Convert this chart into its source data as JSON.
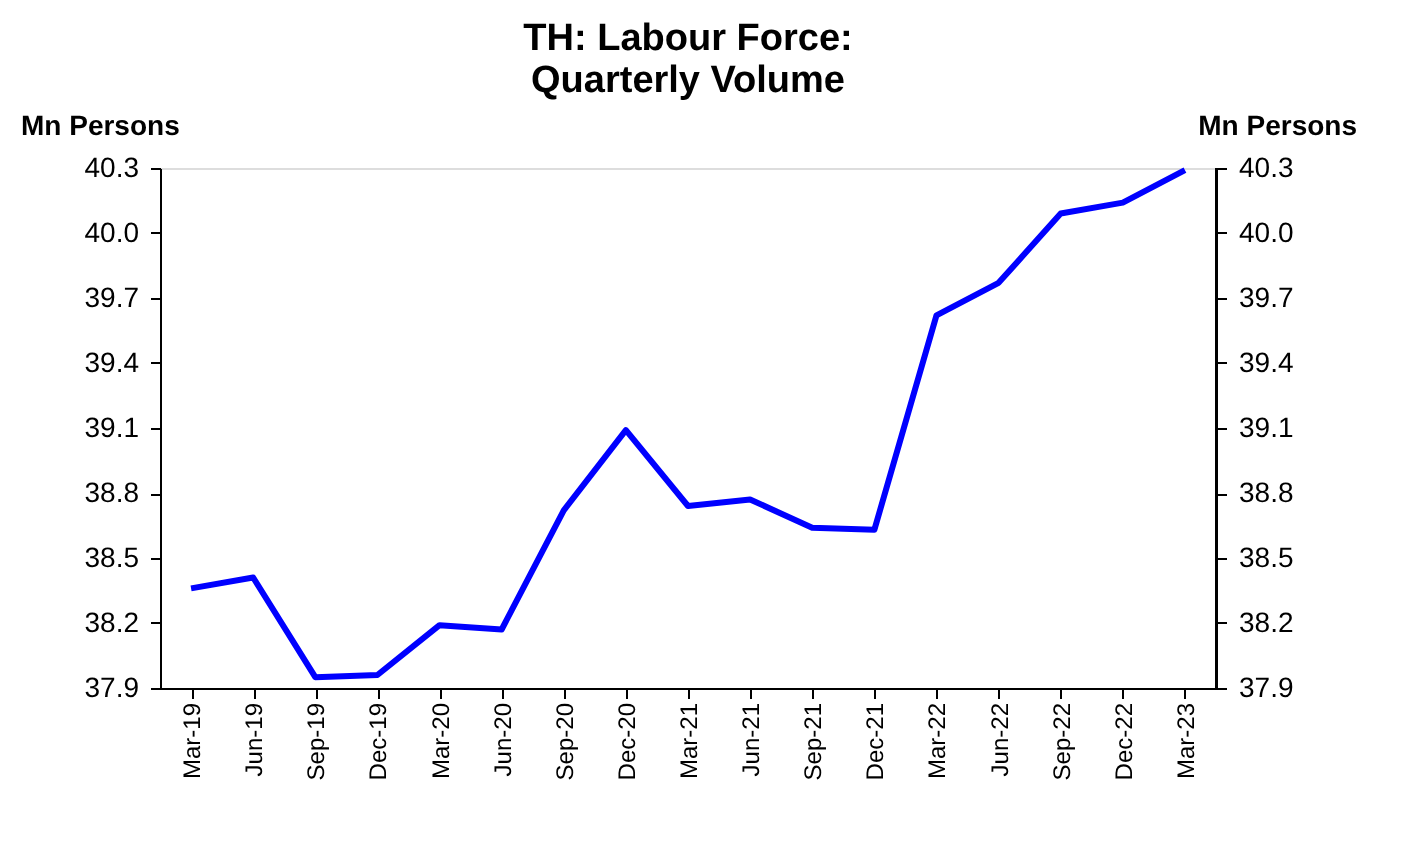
{
  "chart_data": {
    "type": "line",
    "title": "TH: Labour Force: Quarterly Volume",
    "ylabel": "Mn Persons",
    "y2label": "Mn Persons",
    "categories": [
      "Mar-19",
      "Jun-19",
      "Sep-19",
      "Dec-19",
      "Mar-20",
      "Jun-20",
      "Sep-20",
      "Dec-20",
      "Mar-21",
      "Jun-21",
      "Sep-21",
      "Dec-21",
      "Mar-22",
      "Jun-22",
      "Sep-22",
      "Dec-22",
      "Mar-23"
    ],
    "series": [
      {
        "color": "#0000ff",
        "values": [
          38.36,
          38.41,
          37.95,
          37.96,
          38.19,
          38.17,
          38.72,
          39.09,
          38.74,
          38.77,
          38.64,
          38.63,
          39.62,
          39.77,
          40.09,
          40.14,
          40.29
        ]
      }
    ],
    "ylim": [
      37.9,
      40.3
    ],
    "yticks": [
      37.9,
      38.2,
      38.5,
      38.8,
      39.1,
      39.4,
      39.7,
      {
        "value": 40,
        "label": "40.0"
      },
      40.3
    ],
    "y2lim": [
      37.9,
      40.3
    ],
    "y2ticks": [
      37.9,
      38.2,
      38.5,
      38.8,
      39.1,
      39.4,
      39.7,
      {
        "value": 40,
        "label": "40.0"
      },
      40.3
    ],
    "grid": false,
    "marker": "none",
    "line_style": "solid"
  }
}
